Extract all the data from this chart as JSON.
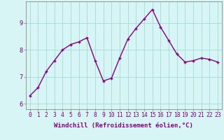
{
  "x": [
    0,
    1,
    2,
    3,
    4,
    5,
    6,
    7,
    8,
    9,
    10,
    11,
    12,
    13,
    14,
    15,
    16,
    17,
    18,
    19,
    20,
    21,
    22,
    23
  ],
  "y": [
    6.3,
    6.6,
    7.2,
    7.6,
    8.0,
    8.2,
    8.3,
    8.45,
    7.6,
    6.85,
    6.95,
    7.7,
    8.4,
    8.8,
    9.15,
    9.5,
    8.85,
    8.35,
    7.85,
    7.55,
    7.6,
    7.7,
    7.65,
    7.55
  ],
  "line_color": "#800080",
  "marker": "+",
  "background_color": "#d8f5f5",
  "grid_color": "#aadddd",
  "xlabel": "Windchill (Refroidissement éolien,°C)",
  "xlabel_color": "#800080",
  "ylabel_ticks": [
    6,
    7,
    8,
    9
  ],
  "xtick_labels": [
    "0",
    "1",
    "2",
    "3",
    "4",
    "5",
    "6",
    "7",
    "8",
    "9",
    "10",
    "11",
    "12",
    "13",
    "14",
    "15",
    "16",
    "17",
    "18",
    "19",
    "20",
    "21",
    "22",
    "23"
  ],
  "ylim": [
    5.8,
    9.8
  ],
  "xlim": [
    -0.5,
    23.5
  ],
  "tick_color": "#800080",
  "axis_color": "#888888",
  "label_fontsize": 6.5,
  "tick_fontsize": 5.8,
  "linewidth": 1.0,
  "markersize": 3.5
}
